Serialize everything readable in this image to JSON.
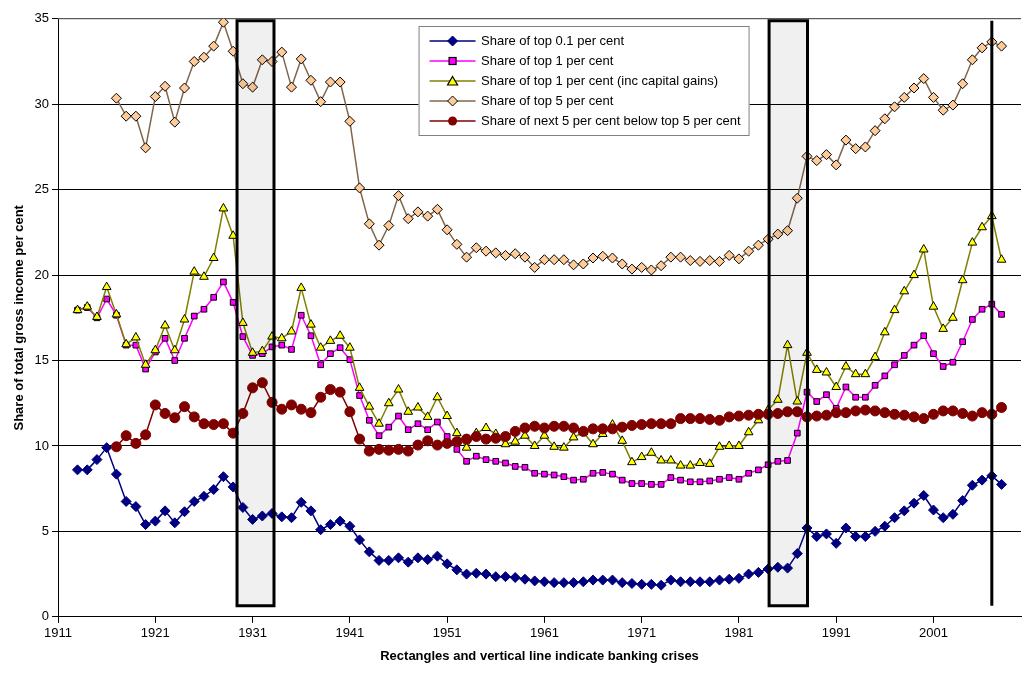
{
  "chart_data": {
    "type": "line",
    "xlabel": "Rectangles and vertical line indicate banking crises",
    "ylabel": "Share of total gross income per cent",
    "xlim": [
      1911,
      2010
    ],
    "xticks": [
      1911,
      1921,
      1931,
      1941,
      1951,
      1961,
      1971,
      1981,
      1991,
      2001
    ],
    "ylim": [
      0,
      35
    ],
    "yticks": [
      0,
      5,
      10,
      15,
      20,
      25,
      30,
      35
    ],
    "grid": "y",
    "legend": "top",
    "bands": [
      {
        "axis": "x",
        "from": 1929.4,
        "to": 1933.2,
        "color": "#000000"
      },
      {
        "axis": "x",
        "from": 1984.1,
        "to": 1988.05,
        "color": "#000000"
      }
    ],
    "ref_lines": [
      {
        "axis": "x",
        "value": 2007,
        "color": "#000000"
      }
    ],
    "series": [
      {
        "name": "Share of top 0.1 per cent",
        "color": "#000080",
        "marker": "diamond",
        "x": [
          1913,
          1914,
          1915,
          1916,
          1917,
          1918,
          1919,
          1920,
          1921,
          1922,
          1923,
          1924,
          1925,
          1926,
          1927,
          1928,
          1929,
          1930,
          1931,
          1932,
          1933,
          1934,
          1935,
          1936,
          1937,
          1938,
          1939,
          1940,
          1941,
          1942,
          1943,
          1944,
          1945,
          1946,
          1947,
          1948,
          1949,
          1950,
          1951,
          1952,
          1953,
          1954,
          1955,
          1956,
          1957,
          1958,
          1959,
          1960,
          1961,
          1962,
          1963,
          1964,
          1965,
          1966,
          1967,
          1968,
          1969,
          1970,
          1971,
          1972,
          1973,
          1974,
          1975,
          1976,
          1977,
          1978,
          1979,
          1980,
          1981,
          1982,
          1983,
          1984,
          1985,
          1986,
          1987,
          1988,
          1989,
          1990,
          1991,
          1992,
          1993,
          1994,
          1995,
          1996,
          1997,
          1998,
          1999,
          2000,
          2001,
          2002,
          2003,
          2004,
          2005,
          2006,
          2007,
          2008
        ],
        "values": [
          8.6,
          8.6,
          9.2,
          9.9,
          8.35,
          6.75,
          6.45,
          5.4,
          5.6,
          6.2,
          5.5,
          6.15,
          6.75,
          7.05,
          7.45,
          8.2,
          7.6,
          6.4,
          5.7,
          5.9,
          6.05,
          5.85,
          5.8,
          6.7,
          6.2,
          5.1,
          5.4,
          5.6,
          5.3,
          4.5,
          3.8,
          3.3,
          3.3,
          3.45,
          3.2,
          3.45,
          3.35,
          3.55,
          3.1,
          2.75,
          2.5,
          2.55,
          2.5,
          2.35,
          2.35,
          2.3,
          2.2,
          2.1,
          2.05,
          2.0,
          2.0,
          2.0,
          2.05,
          2.15,
          2.15,
          2.15,
          2.0,
          1.95,
          1.9,
          1.9,
          1.85,
          2.15,
          2.05,
          2.05,
          2.05,
          2.05,
          2.15,
          2.2,
          2.25,
          2.5,
          2.6,
          2.8,
          2.9,
          2.85,
          3.7,
          5.2,
          4.7,
          4.85,
          4.3,
          5.2,
          4.7,
          4.7,
          5.0,
          5.3,
          5.8,
          6.2,
          6.65,
          7.1,
          6.25,
          5.8,
          6.0,
          6.8,
          7.7,
          8.0,
          8.25,
          7.75
        ]
      },
      {
        "name": "Share of top 1 per cent",
        "color": "#ff00ff",
        "marker": "square",
        "x": [
          1913,
          1914,
          1915,
          1916,
          1917,
          1918,
          1919,
          1920,
          1921,
          1922,
          1923,
          1924,
          1925,
          1926,
          1927,
          1928,
          1929,
          1930,
          1931,
          1932,
          1933,
          1934,
          1935,
          1936,
          1937,
          1938,
          1939,
          1940,
          1941,
          1942,
          1943,
          1944,
          1945,
          1946,
          1947,
          1948,
          1949,
          1950,
          1951,
          1952,
          1953,
          1954,
          1955,
          1956,
          1957,
          1958,
          1959,
          1960,
          1961,
          1962,
          1963,
          1964,
          1965,
          1966,
          1967,
          1968,
          1969,
          1970,
          1971,
          1972,
          1973,
          1974,
          1975,
          1976,
          1977,
          1978,
          1979,
          1980,
          1981,
          1982,
          1983,
          1984,
          1985,
          1986,
          1987,
          1988,
          1989,
          1990,
          1991,
          1992,
          1993,
          1994,
          1995,
          1996,
          1997,
          1998,
          1999,
          2000,
          2001,
          2002,
          2003,
          2004,
          2005,
          2006,
          2007,
          2008
        ],
        "values": [
          17.95,
          18.1,
          17.5,
          18.6,
          17.65,
          15.9,
          15.9,
          14.5,
          15.5,
          16.3,
          15.0,
          16.3,
          17.6,
          18.0,
          18.7,
          19.6,
          18.4,
          16.4,
          15.3,
          15.4,
          15.8,
          15.9,
          15.65,
          17.65,
          16.45,
          14.75,
          15.4,
          15.75,
          15.05,
          12.95,
          11.5,
          10.6,
          11.1,
          11.75,
          10.95,
          11.3,
          10.95,
          11.4,
          10.55,
          9.8,
          9.1,
          9.4,
          9.2,
          9.1,
          9.0,
          8.8,
          8.75,
          8.4,
          8.35,
          8.3,
          8.2,
          8.0,
          8.05,
          8.4,
          8.45,
          8.35,
          8.0,
          7.8,
          7.8,
          7.75,
          7.75,
          8.15,
          8.0,
          7.9,
          7.9,
          7.95,
          8.05,
          8.15,
          8.05,
          8.4,
          8.6,
          8.9,
          9.1,
          9.15,
          10.75,
          13.15,
          12.6,
          13.0,
          12.2,
          13.45,
          12.85,
          12.85,
          13.55,
          14.1,
          14.75,
          15.3,
          15.9,
          16.45,
          15.4,
          14.65,
          14.9,
          16.1,
          17.4,
          18.0,
          18.3,
          17.7
        ]
      },
      {
        "name": "Share of top 1 per cent (inc capital gains)",
        "color": "#ffff00",
        "marker": "triangle",
        "x": [
          1913,
          1914,
          1915,
          1916,
          1917,
          1918,
          1919,
          1920,
          1921,
          1922,
          1923,
          1924,
          1925,
          1926,
          1927,
          1928,
          1929,
          1930,
          1931,
          1932,
          1933,
          1934,
          1935,
          1936,
          1937,
          1938,
          1939,
          1940,
          1941,
          1942,
          1943,
          1944,
          1945,
          1946,
          1947,
          1948,
          1949,
          1950,
          1951,
          1952,
          1953,
          1954,
          1955,
          1956,
          1957,
          1958,
          1959,
          1960,
          1961,
          1962,
          1963,
          1964,
          1965,
          1966,
          1967,
          1968,
          1969,
          1970,
          1971,
          1972,
          1973,
          1974,
          1975,
          1976,
          1977,
          1978,
          1979,
          1980,
          1981,
          1982,
          1983,
          1984,
          1985,
          1986,
          1987,
          1988,
          1989,
          1990,
          1991,
          1992,
          1993,
          1994,
          1995,
          1996,
          1997,
          1998,
          1999,
          2000,
          2001,
          2002,
          2003,
          2004,
          2005,
          2006,
          2007,
          2008
        ],
        "values": [
          17.95,
          18.15,
          17.55,
          19.3,
          17.7,
          15.95,
          16.35,
          14.75,
          15.6,
          17.05,
          15.6,
          17.4,
          20.2,
          19.9,
          21.0,
          23.9,
          22.3,
          17.2,
          15.45,
          15.55,
          16.4,
          16.3,
          16.7,
          19.25,
          17.1,
          15.75,
          16.15,
          16.45,
          15.75,
          13.4,
          12.3,
          11.3,
          12.5,
          13.3,
          12.0,
          12.25,
          11.7,
          12.85,
          11.75,
          10.75,
          9.9,
          10.75,
          11.05,
          10.7,
          10.1,
          10.25,
          10.6,
          10.0,
          10.6,
          9.95,
          9.9,
          10.5,
          10.8,
          10.1,
          10.7,
          11.25,
          10.3,
          9.05,
          9.35,
          9.6,
          9.15,
          9.15,
          8.85,
          8.85,
          9.0,
          8.95,
          9.95,
          10.0,
          10.0,
          10.8,
          11.5,
          12.1,
          12.7,
          15.9,
          12.6,
          15.45,
          14.45,
          14.3,
          13.45,
          14.65,
          14.2,
          14.2,
          15.2,
          16.65,
          17.95,
          19.05,
          20.0,
          21.5,
          18.15,
          16.85,
          17.5,
          19.7,
          21.9,
          22.8,
          23.45,
          20.9
        ]
      },
      {
        "name": "Share of top 5 per cent",
        "color": "#ffcc99",
        "marker": "diamond",
        "x": [
          1917,
          1918,
          1919,
          1920,
          1921,
          1922,
          1923,
          1924,
          1925,
          1926,
          1927,
          1928,
          1929,
          1930,
          1931,
          1932,
          1933,
          1934,
          1935,
          1936,
          1937,
          1938,
          1939,
          1940,
          1941,
          1942,
          1943,
          1944,
          1945,
          1946,
          1947,
          1948,
          1949,
          1950,
          1951,
          1952,
          1953,
          1954,
          1955,
          1956,
          1957,
          1958,
          1959,
          1960,
          1961,
          1962,
          1963,
          1964,
          1965,
          1966,
          1967,
          1968,
          1969,
          1970,
          1971,
          1972,
          1973,
          1974,
          1975,
          1976,
          1977,
          1978,
          1979,
          1980,
          1981,
          1982,
          1983,
          1984,
          1985,
          1986,
          1987,
          1988,
          1989,
          1990,
          1991,
          1992,
          1993,
          1994,
          1995,
          1996,
          1997,
          1998,
          1999,
          2000,
          2001,
          2002,
          2003,
          2004,
          2005,
          2006,
          2007,
          2008
        ],
        "values": [
          30.35,
          29.3,
          29.3,
          27.45,
          30.45,
          31.05,
          28.95,
          30.95,
          32.5,
          32.75,
          33.4,
          34.8,
          33.1,
          31.2,
          31.0,
          32.6,
          32.5,
          33.05,
          31.0,
          32.65,
          31.4,
          30.15,
          31.3,
          31.3,
          29.0,
          25.1,
          23.0,
          21.75,
          22.9,
          24.65,
          23.3,
          23.7,
          23.45,
          23.85,
          22.65,
          21.8,
          21.05,
          21.6,
          21.4,
          21.3,
          21.15,
          21.25,
          21.05,
          20.45,
          20.9,
          20.9,
          20.9,
          20.6,
          20.65,
          21.0,
          21.1,
          21.0,
          20.65,
          20.35,
          20.45,
          20.3,
          20.55,
          21.05,
          21.05,
          20.85,
          20.8,
          20.85,
          20.8,
          21.15,
          20.95,
          21.4,
          21.75,
          22.1,
          22.4,
          22.6,
          24.5,
          26.95,
          26.7,
          27.05,
          26.45,
          27.9,
          27.4,
          27.5,
          28.45,
          29.15,
          29.85,
          30.4,
          30.95,
          31.5,
          30.4,
          29.65,
          29.95,
          31.2,
          32.6,
          33.3,
          33.65,
          33.4
        ]
      },
      {
        "name": "Share of next 5 per cent below top 5 per cent",
        "color": "#800000",
        "marker": "circle",
        "x": [
          1917,
          1918,
          1919,
          1920,
          1921,
          1922,
          1923,
          1924,
          1925,
          1926,
          1927,
          1928,
          1929,
          1930,
          1931,
          1932,
          1933,
          1934,
          1935,
          1936,
          1937,
          1938,
          1939,
          1940,
          1941,
          1942,
          1943,
          1944,
          1945,
          1946,
          1947,
          1948,
          1949,
          1950,
          1951,
          1952,
          1953,
          1954,
          1955,
          1956,
          1957,
          1958,
          1959,
          1960,
          1961,
          1962,
          1963,
          1964,
          1965,
          1966,
          1967,
          1968,
          1969,
          1970,
          1971,
          1972,
          1973,
          1974,
          1975,
          1976,
          1977,
          1978,
          1979,
          1980,
          1981,
          1982,
          1983,
          1984,
          1985,
          1986,
          1987,
          1988,
          1989,
          1990,
          1991,
          1992,
          1993,
          1994,
          1995,
          1996,
          1997,
          1998,
          1999,
          2000,
          2001,
          2002,
          2003,
          2004,
          2005,
          2006,
          2007,
          2008
        ],
        "values": [
          9.95,
          10.6,
          10.15,
          10.65,
          12.4,
          11.9,
          11.65,
          12.3,
          11.7,
          11.3,
          11.25,
          11.3,
          10.75,
          11.9,
          13.4,
          13.7,
          12.55,
          12.15,
          12.4,
          12.15,
          11.95,
          12.85,
          13.3,
          13.15,
          12.0,
          10.4,
          9.7,
          9.8,
          9.75,
          9.8,
          9.7,
          10.05,
          10.3,
          10.05,
          10.15,
          10.25,
          10.4,
          10.55,
          10.4,
          10.45,
          10.55,
          10.85,
          11.05,
          11.15,
          11.05,
          11.15,
          11.15,
          11.05,
          10.85,
          11.0,
          11.0,
          11.0,
          11.1,
          11.2,
          11.25,
          11.3,
          11.3,
          11.3,
          11.6,
          11.6,
          11.6,
          11.55,
          11.5,
          11.7,
          11.75,
          11.8,
          11.85,
          11.85,
          11.9,
          12.0,
          12.0,
          11.7,
          11.75,
          11.8,
          11.95,
          11.95,
          12.05,
          12.1,
          12.05,
          11.95,
          11.85,
          11.8,
          11.7,
          11.6,
          11.85,
          12.05,
          12.05,
          11.9,
          11.75,
          11.95,
          11.85,
          12.25
        ]
      }
    ]
  }
}
